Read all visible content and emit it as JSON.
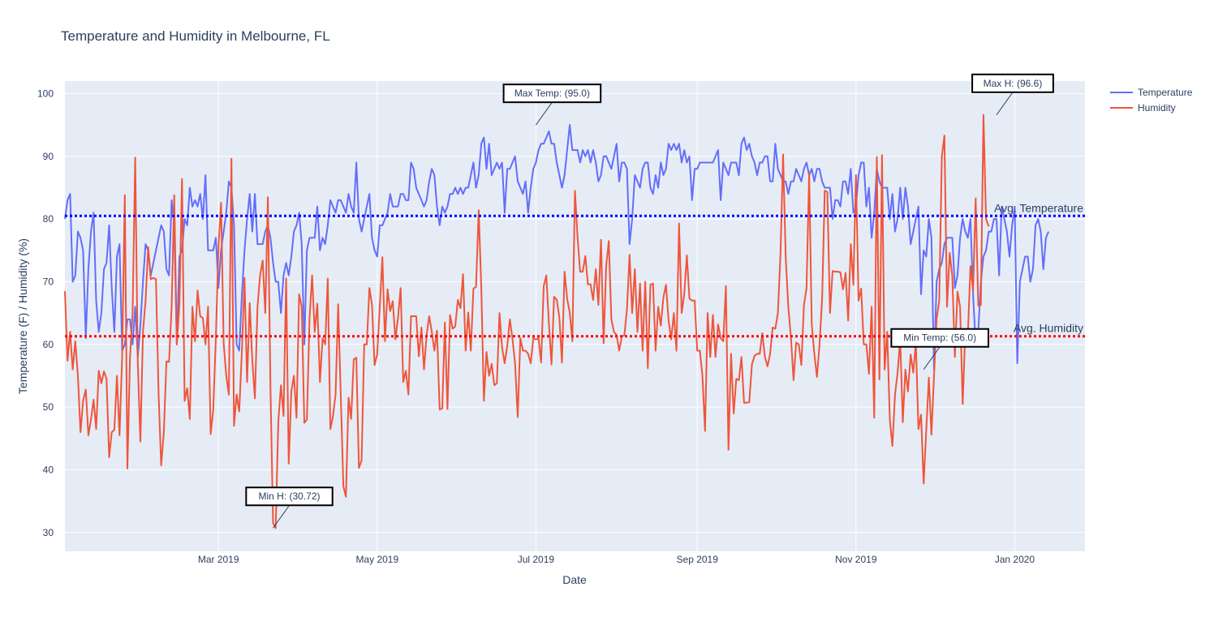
{
  "chart_data": {
    "type": "line",
    "title": "Temperature and Humidity in Melbourne, FL",
    "xlabel": "Date",
    "ylabel": "Temperature (F) / Humidity (%)",
    "x_start": "2019-01-01",
    "x_end": "2019-12-27",
    "xlim": [
      "2019-01-01",
      "2020-01-28"
    ],
    "ylim": [
      27,
      102
    ],
    "x_ticks": [
      {
        "date": "2019-03-01",
        "label": "Mar 2019"
      },
      {
        "date": "2019-05-01",
        "label": "May 2019"
      },
      {
        "date": "2019-07-01",
        "label": "Jul 2019"
      },
      {
        "date": "2019-09-01",
        "label": "Sep 2019"
      },
      {
        "date": "2019-11-01",
        "label": "Nov 2019"
      },
      {
        "date": "2020-01-01",
        "label": "Jan 2020"
      }
    ],
    "y_ticks": [
      30,
      40,
      50,
      60,
      70,
      80,
      90,
      100
    ],
    "grid": true,
    "legend_position": "top-right",
    "series": [
      {
        "name": "Temperature",
        "color": "#636efa",
        "values": [
          80,
          83,
          84,
          70,
          71,
          78,
          77,
          75,
          61,
          72,
          78,
          81,
          67,
          62,
          65,
          72,
          73,
          79,
          69,
          62,
          74,
          76,
          59,
          60,
          64,
          64,
          60,
          66,
          58,
          63,
          70,
          76,
          75,
          71,
          73,
          75,
          77,
          79,
          78,
          72,
          71,
          83,
          79,
          60,
          74,
          75,
          80,
          79,
          85,
          82,
          83,
          82,
          84,
          80,
          87,
          75,
          75,
          75,
          77,
          69,
          75,
          78,
          81,
          86,
          85,
          79,
          60,
          59,
          68,
          75,
          80,
          84,
          78,
          84,
          76,
          76,
          76,
          78,
          79,
          77,
          73,
          70,
          70,
          65,
          71,
          73,
          71,
          74,
          78,
          79,
          81,
          76,
          60,
          75,
          77,
          77,
          77,
          82,
          75,
          77,
          76,
          79,
          83,
          82,
          81,
          83,
          83,
          82,
          81,
          84,
          82,
          81,
          89,
          80,
          78,
          80,
          82,
          84,
          77,
          75,
          74,
          79,
          79,
          80,
          81,
          84,
          82,
          82,
          82,
          84,
          84,
          83,
          83,
          89,
          88,
          85,
          84,
          83,
          82,
          83,
          86,
          88,
          87,
          82,
          79,
          82,
          81,
          82,
          84,
          84,
          85,
          84,
          85,
          84,
          85,
          85,
          87,
          89,
          85,
          87,
          92,
          93,
          88,
          92,
          87,
          88,
          89,
          88,
          89,
          81,
          88,
          88,
          89,
          90,
          86,
          85,
          84,
          86,
          81,
          85,
          88,
          89,
          91,
          92,
          92,
          93,
          94,
          92,
          92,
          89,
          87,
          85,
          87,
          91,
          95,
          91,
          91,
          91,
          89,
          91,
          90,
          91,
          89,
          91,
          89,
          86,
          87,
          90,
          90,
          89,
          88,
          90,
          92,
          86,
          89,
          89,
          88,
          76,
          80,
          87,
          86,
          85,
          88,
          89,
          89,
          85,
          84,
          87,
          85,
          89,
          87,
          88,
          92,
          91,
          92,
          91,
          92,
          89,
          91,
          89,
          90,
          83,
          88,
          88,
          89,
          89,
          89,
          89,
          89,
          89,
          90,
          91,
          83,
          89,
          88,
          87,
          89,
          89,
          89,
          87,
          92,
          93,
          91,
          92,
          90,
          89,
          87,
          89,
          89,
          90,
          90,
          86,
          86,
          92,
          88,
          87,
          86,
          86,
          84,
          86,
          86,
          88,
          87,
          86,
          88,
          89,
          87,
          88,
          86,
          88,
          88,
          86,
          85,
          85,
          85,
          80,
          83,
          83,
          82,
          86,
          86,
          84,
          88,
          81,
          82,
          87,
          89,
          89,
          82,
          85,
          77,
          81,
          88,
          86,
          85,
          85,
          85,
          80,
          84,
          78,
          80,
          85,
          80,
          85,
          82,
          76,
          78,
          80,
          82,
          68,
          75,
          74,
          80,
          77,
          56,
          70,
          72,
          73,
          76,
          77,
          77,
          77,
          69,
          71,
          77,
          80,
          78,
          77,
          80,
          68,
          60,
          62,
          70,
          74,
          75,
          78,
          78,
          80,
          80,
          71,
          82,
          80,
          78,
          74,
          79,
          82,
          57,
          70,
          72,
          74,
          74,
          70,
          72,
          79,
          80,
          78,
          72,
          77,
          78
        ]
      },
      {
        "name": "Humidity",
        "color": "#ef553b",
        "values": [
          68.5,
          57.4,
          62.0,
          56.0,
          60.5,
          55.0,
          46.0,
          51.0,
          52.8,
          45.5,
          48.0,
          51.2,
          46.5,
          55.8,
          53.8,
          55.7,
          54.5,
          42.0,
          46.0,
          46.4,
          55.0,
          45.5,
          58.0,
          83.8,
          40.2,
          58.0,
          65.0,
          89.8,
          57.0,
          44.5,
          62.0,
          67.0,
          75.5,
          70.4,
          70.6,
          70.4,
          52.2,
          40.7,
          46.0,
          57.3,
          57.2,
          66.0,
          83.8,
          60.0,
          66.4,
          86.4,
          51.0,
          53.0,
          48.1,
          66.0,
          60.5,
          68.6,
          64.5,
          64.2,
          60.0,
          66.0,
          45.7,
          49.6,
          61.0,
          75.5,
          82.6,
          60.2,
          55.0,
          52.0,
          89.6,
          47.0,
          52.0,
          49.3,
          59.0,
          70.6,
          54.0,
          66.6,
          57.4,
          51.4,
          66.0,
          71.0,
          73.4,
          65.0,
          83.5,
          53.0,
          31.5,
          30.7,
          47.5,
          53.5,
          48.6,
          70.5,
          41.0,
          52.5,
          55.0,
          48.3,
          68.0,
          66.0,
          47.5,
          48.0,
          64.0,
          71.0,
          62.0,
          66.5,
          54.0,
          61.0,
          60.0,
          70.5,
          46.5,
          48.5,
          52.0,
          66.4,
          52.0,
          37.4,
          35.7,
          51.5,
          48.1,
          57.6,
          57.9,
          40.3,
          41.5,
          60.0,
          60.0,
          69.0,
          66.3,
          56.7,
          58.4,
          66.0,
          73.9,
          60.5,
          68.8,
          65.3,
          66.9,
          60.8,
          64.2,
          69.0,
          54.0,
          55.8,
          52.0,
          64.5,
          64.5,
          64.5,
          58.1,
          62.7,
          56.0,
          61.5,
          64.5,
          62.0,
          59.0,
          62.2,
          49.6,
          49.8,
          63.5,
          49.7,
          64.7,
          62.5,
          62.9,
          67.1,
          65.8,
          71.2,
          59.0,
          65.1,
          59.0,
          68.9,
          69.2,
          81.4,
          69.0,
          51.0,
          58.8,
          55.0,
          56.9,
          53.5,
          53.8,
          65.0,
          59.5,
          57.0,
          59.8,
          64.0,
          60.9,
          57.0,
          48.4,
          61.0,
          59.0,
          59.0,
          58.5,
          57.0,
          61.0,
          60.8,
          61.0,
          57.1,
          69.3,
          71.0,
          63.4,
          56.8,
          67.6,
          67.1,
          64.3,
          57.1,
          71.6,
          67.3,
          65.1,
          60.5,
          84.5,
          77.1,
          71.6,
          71.6,
          74.1,
          69.6,
          69.6,
          67.1,
          72.0,
          66.3,
          76.7,
          60.2,
          72.5,
          76.5,
          64.0,
          62.0,
          61.5,
          59.0,
          61.2,
          61.5,
          65.6,
          74.3,
          65.0,
          72.0,
          62.0,
          69.7,
          59.0,
          70.0,
          56.2,
          69.5,
          69.7,
          59.0,
          66.0,
          63.0,
          67.5,
          69.5,
          63.8,
          60.8,
          65.0,
          59.0,
          79.3,
          65.0,
          68.0,
          74.2,
          67.3,
          67.0,
          67.0,
          59.0,
          59.0,
          55.0,
          46.2,
          65.0,
          58.0,
          64.7,
          58.0,
          63.2,
          61.0,
          60.5,
          69.3,
          43.2,
          58.5,
          49.0,
          54.5,
          54.3,
          58.0,
          50.7,
          50.7,
          50.8,
          56.8,
          58.2,
          58.5,
          58.5,
          61.8,
          58.0,
          56.5,
          58.5,
          62.7,
          62.5,
          65.0,
          74.5,
          90.3,
          74.0,
          66.0,
          61.0,
          54.3,
          60.3,
          60.0,
          56.7,
          66.3,
          69.0,
          87.3,
          63.2,
          58.5,
          54.8,
          60.0,
          67.3,
          84.5,
          84.3,
          65.0,
          71.7,
          71.6,
          71.6,
          71.5,
          68.8,
          71.4,
          63.8,
          76.0,
          69.5,
          87.0,
          67.0,
          68.9,
          60.0,
          60.0,
          55.3,
          66.0,
          48.3,
          89.9,
          54.4,
          90.2,
          56.0,
          62.0,
          48.0,
          43.8,
          52.0,
          55.5,
          60.8,
          47.6,
          56.0,
          52.5,
          58.4,
          55.5,
          60.3,
          46.5,
          48.8,
          37.8,
          46.3,
          54.7,
          45.6,
          55.0,
          64.0,
          67.0,
          90.0,
          93.3,
          66.0,
          74.6,
          70.9,
          58.0,
          68.4,
          66.0,
          50.5,
          62.0,
          61.6,
          72.5,
          68.5,
          83.3,
          66.2,
          66.3,
          96.6,
          80.0,
          78.8
        ]
      }
    ],
    "reference_lines": [
      {
        "label": "Avg. Temperature",
        "y": 80.5,
        "color": "#0000ff"
      },
      {
        "label": "Avg. Humidity",
        "y": 61.3,
        "color": "#ff0000"
      }
    ],
    "annotations": [
      {
        "text": "Max Temp: (95.0)",
        "date": "2019-07-01",
        "y": 95.0
      },
      {
        "text": "Min Temp: (56.0)",
        "date": "2019-11-27",
        "y": 56.0
      },
      {
        "text": "Min H: (30.72)",
        "date": "2019-03-22",
        "y": 30.72
      },
      {
        "text": "Max H: (96.6)",
        "date": "2019-12-25",
        "y": 96.6
      }
    ]
  }
}
